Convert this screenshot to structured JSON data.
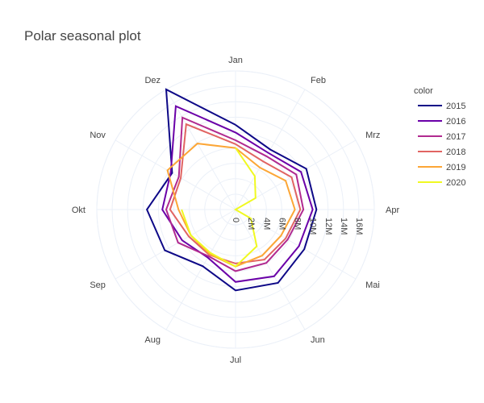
{
  "chart_data": {
    "type": "line",
    "subtype": "polar",
    "title": "Polar seasonal plot",
    "angular_axis": {
      "categories": [
        "Jan",
        "Feb",
        "Mrz",
        "Apr",
        "Mai",
        "Jun",
        "Jul",
        "Aug",
        "Sep",
        "Okt",
        "Nov",
        "Dez"
      ],
      "direction": "clockwise",
      "rotation": "Jan at top"
    },
    "radial_axis": {
      "range": [
        0,
        18000000
      ],
      "tick_values": [
        0,
        2000000,
        4000000,
        6000000,
        8000000,
        10000000,
        12000000,
        14000000,
        16000000
      ],
      "tick_labels": [
        "0",
        "2M",
        "4M",
        "6M",
        "8M",
        "10M",
        "12M",
        "14M",
        "16M"
      ],
      "angle": "along Apr axis"
    },
    "grid": true,
    "legend": {
      "title": "color",
      "placement": "right"
    },
    "series": [
      {
        "name": "2015",
        "color": "#0d0887",
        "closed": true,
        "values": [
          11000000,
          9000000,
          10600000,
          10500000,
          10300000,
          11000000,
          10500000,
          8500000,
          10600000,
          11500000,
          9500000,
          18000000
        ]
      },
      {
        "name": "2016",
        "color": "#6a00a8",
        "closed": true,
        "values": [
          10000000,
          8500000,
          9800000,
          10000000,
          9500000,
          10000000,
          9400000,
          7200000,
          8000000,
          9500000,
          9700000,
          15500000
        ]
      },
      {
        "name": "2017",
        "color": "#b12a90",
        "closed": true,
        "values": [
          9000000,
          8000000,
          9100000,
          8800000,
          7800000,
          8000000,
          8000000,
          7000000,
          8600000,
          9000000,
          8500000,
          13800000
        ]
      },
      {
        "name": "2018",
        "color": "#e16462",
        "closed": true,
        "values": [
          8500000,
          7200000,
          8400000,
          8400000,
          7500000,
          7500000,
          7000000,
          6800000,
          7000000,
          8500000,
          8200000,
          12800000
        ]
      },
      {
        "name": "2019",
        "color": "#fca636",
        "closed": true,
        "values": [
          8000000,
          6300000,
          7500000,
          7700000,
          6800000,
          6900000,
          7400000,
          6700000,
          6700000,
          7400000,
          10200000,
          9900000
        ]
      },
      {
        "name": "2020",
        "color": "#f0f921",
        "closed": false,
        "values": [
          8000000,
          5000000,
          3000000,
          0,
          2300000,
          5500000,
          7400000,
          6500000,
          6700000,
          7000000
        ]
      }
    ]
  }
}
